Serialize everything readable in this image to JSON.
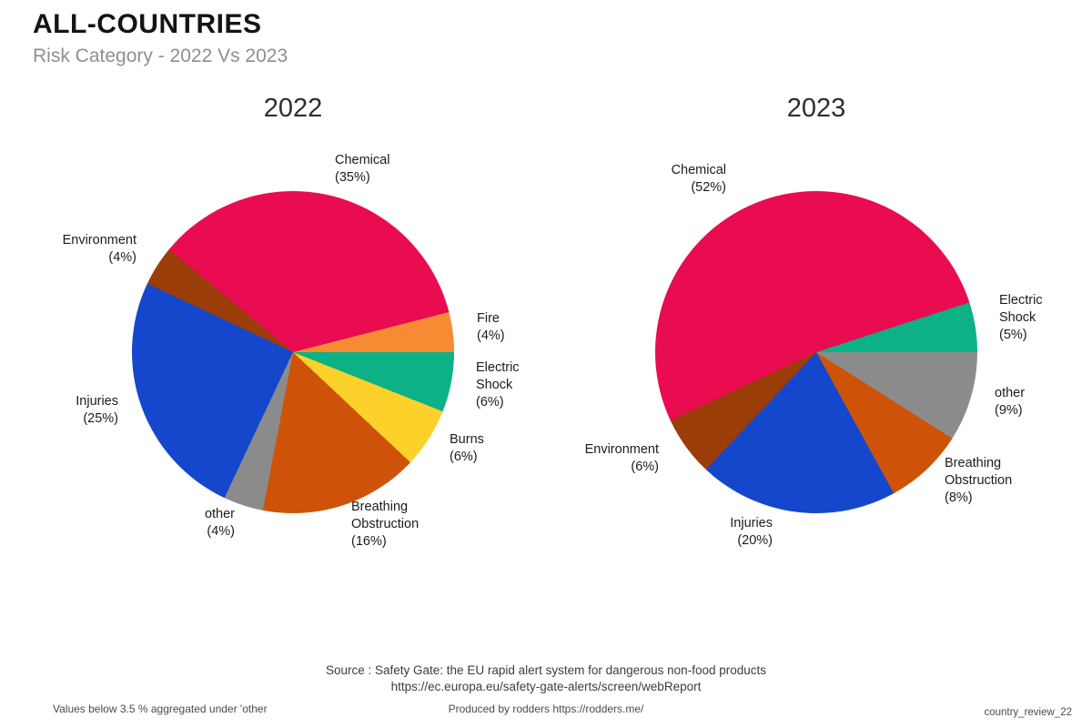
{
  "header": {
    "title": "ALL-COUNTRIES",
    "subtitle": "Risk Category - 2022 Vs 2023"
  },
  "palette": {
    "chemical": "#E90C50",
    "fire": "#F68B33",
    "electric_shock": "#0CB185",
    "burns": "#FCD12A",
    "breathing_obstruction": "#CE5308",
    "other": "#8B8B8B",
    "injuries": "#1447CC",
    "environment": "#9A3D08",
    "title_text": "#141414",
    "subtitle_text": "#8f8f8f",
    "label_text": "#1c1c1c",
    "footer_text": "#3d3d3d"
  },
  "chart_data": [
    {
      "type": "pie",
      "title": "2022",
      "units": "%",
      "direction": "clockwise",
      "start_angle_deg": -50.4,
      "legend": "none",
      "slices": [
        {
          "label": "Chemical",
          "pct": 35,
          "pct_label": "(35%)",
          "color": "#E90C50"
        },
        {
          "label": "Fire",
          "pct": 4,
          "pct_label": "(4%)",
          "color": "#F68B33"
        },
        {
          "label": "Electric Shock",
          "pct": 6,
          "pct_label": "(6%)",
          "color": "#0CB185"
        },
        {
          "label": "Burns",
          "pct": 6,
          "pct_label": "(6%)",
          "color": "#FCD12A"
        },
        {
          "label": "Breathing Obstruction",
          "pct": 16,
          "pct_label": "(16%)",
          "color": "#CE5308"
        },
        {
          "label": "other",
          "pct": 4,
          "pct_label": "(4%)",
          "color": "#8B8B8B"
        },
        {
          "label": "Injuries",
          "pct": 25,
          "pct_label": "(25%)",
          "color": "#1447CC"
        },
        {
          "label": "Environment",
          "pct": 4,
          "pct_label": "(4%)",
          "color": "#9A3D08"
        }
      ]
    },
    {
      "type": "pie",
      "title": "2023",
      "units": "%",
      "direction": "clockwise",
      "start_angle_deg": -115.2,
      "legend": "none",
      "slices": [
        {
          "label": "Chemical",
          "pct": 52,
          "pct_label": "(52%)",
          "color": "#E90C50"
        },
        {
          "label": "Electric Shock",
          "pct": 5,
          "pct_label": "(5%)",
          "color": "#0CB185"
        },
        {
          "label": "other",
          "pct": 9,
          "pct_label": "(9%)",
          "color": "#8B8B8B"
        },
        {
          "label": "Breathing Obstruction",
          "pct": 8,
          "pct_label": "(8%)",
          "color": "#CE5308"
        },
        {
          "label": "Injuries",
          "pct": 20,
          "pct_label": "(20%)",
          "color": "#1447CC"
        },
        {
          "label": "Environment",
          "pct": 6,
          "pct_label": "(6%)",
          "color": "#9A3D08"
        }
      ]
    }
  ],
  "footer": {
    "source_line1": "Source : Safety Gate: the EU rapid alert system for dangerous non-food products",
    "source_line2": "https://ec.europa.eu/safety-gate-alerts/screen/webReport",
    "note_left": "Values below 3.5 % aggregated under 'other",
    "produced_by": "Produced by rodders https://rodders.me/",
    "doc_ref": "country_review_22"
  }
}
